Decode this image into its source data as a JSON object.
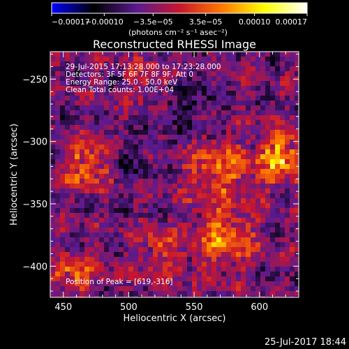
{
  "chart_data": {
    "type": "heatmap",
    "title": "Reconstructed RHESSI Image",
    "xlabel": "Heliocentric X (arcsec)",
    "ylabel": "Heliocentric Y (arcsec)",
    "xlim": [
      440,
      630
    ],
    "ylim": [
      -425,
      -228
    ],
    "x_ticks": [
      {
        "value": 450,
        "label": "450"
      },
      {
        "value": 500,
        "label": "500"
      },
      {
        "value": 550,
        "label": "550"
      },
      {
        "value": 600,
        "label": "600"
      }
    ],
    "y_ticks": [
      {
        "value": -250,
        "label": "−250"
      },
      {
        "value": -300,
        "label": "−300"
      },
      {
        "value": -350,
        "label": "−350"
      },
      {
        "value": -400,
        "label": "−400"
      }
    ],
    "colorbar": {
      "min": -0.00017,
      "max": 0.00017,
      "ticks": [
        {
          "value": -0.00017,
          "label": "−0.00017"
        },
        {
          "value": -0.0001,
          "label": "−0.00010"
        },
        {
          "value": -3.5e-05,
          "label": "−3.5e−05"
        },
        {
          "value": 3.5e-05,
          "label": "3.5e−05"
        },
        {
          "value": 0.0001,
          "label": "0.00010"
        },
        {
          "value": 0.00017,
          "label": "0.00017"
        }
      ],
      "units": "(photons cm⁻² s⁻¹ asec⁻²)",
      "colors": [
        "#0000ff",
        "#000000",
        "#5a1a90",
        "#c8152d",
        "#ff7800",
        "#ffff00",
        "#ffffff"
      ]
    },
    "annotations": [
      "29-Jul-2015 17:13:28.000 to 17:23:28.000",
      "Detectors: 3F 5F 6F 7F 8F 9F, Att 0",
      "Energy Range: 25.0 - 50.0 keV",
      "Clean     Total counts: 1.00E+04"
    ],
    "peak_label": "Position of Peak = [619,-316]",
    "peak": {
      "x": 619,
      "y": -316
    },
    "grid": false
  },
  "footer": {
    "date": "25-Jul-2017 18:44"
  }
}
